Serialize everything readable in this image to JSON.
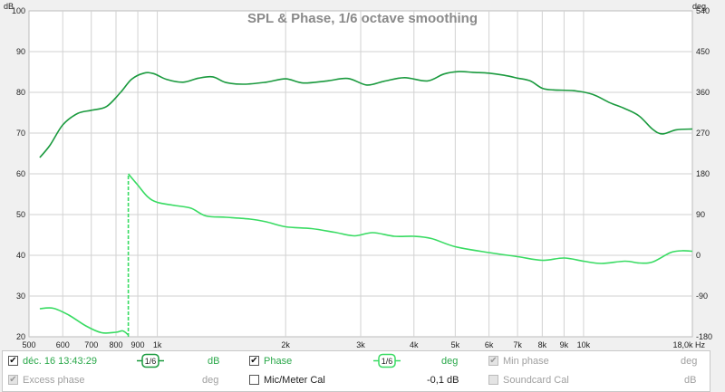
{
  "chart_data": {
    "type": "line",
    "title": "SPL & Phase, 1/6 octave smoothing",
    "left_axis": {
      "unit": "dB",
      "range": [
        20,
        100
      ],
      "ticks": [
        100,
        90,
        80,
        70,
        60,
        50,
        40,
        30,
        20
      ]
    },
    "right_axis": {
      "unit": "deg",
      "range": [
        -180,
        540
      ],
      "ticks": [
        540,
        450,
        360,
        270,
        180,
        90,
        0,
        -90,
        -180
      ]
    },
    "x_axis": {
      "unit": "Hz",
      "scale": "log",
      "range": [
        500,
        18000
      ],
      "ticks": [
        {
          "value": 500,
          "label": "500"
        },
        {
          "value": 600,
          "label": "600"
        },
        {
          "value": 700,
          "label": "700"
        },
        {
          "value": 800,
          "label": "800"
        },
        {
          "value": 900,
          "label": "900"
        },
        {
          "value": 1000,
          "label": "1k"
        },
        {
          "value": 2000,
          "label": "2k"
        },
        {
          "value": 3000,
          "label": "3k"
        },
        {
          "value": 4000,
          "label": "4k"
        },
        {
          "value": 5000,
          "label": "5k"
        },
        {
          "value": 6000,
          "label": "6k"
        },
        {
          "value": 7000,
          "label": "7k"
        },
        {
          "value": 8000,
          "label": "8k"
        },
        {
          "value": 9000,
          "label": "9k"
        },
        {
          "value": 10000,
          "label": "10k"
        },
        {
          "value": 18000,
          "label": "18,0k Hz"
        }
      ]
    },
    "series": [
      {
        "name": "SPL",
        "axis": "left",
        "color": "#1a9a3e",
        "points": [
          [
            530,
            64
          ],
          [
            560,
            67
          ],
          [
            600,
            72
          ],
          [
            650,
            74.8
          ],
          [
            700,
            75.6
          ],
          [
            760,
            76.5
          ],
          [
            820,
            80
          ],
          [
            870,
            83.2
          ],
          [
            930,
            84.7
          ],
          [
            980,
            84.6
          ],
          [
            1050,
            83.2
          ],
          [
            1150,
            82.5
          ],
          [
            1250,
            83.5
          ],
          [
            1350,
            83.8
          ],
          [
            1450,
            82.4
          ],
          [
            1600,
            82
          ],
          [
            1800,
            82.5
          ],
          [
            2000,
            83.3
          ],
          [
            2200,
            82.3
          ],
          [
            2500,
            82.8
          ],
          [
            2800,
            83.4
          ],
          [
            3100,
            81.8
          ],
          [
            3400,
            82.7
          ],
          [
            3800,
            83.6
          ],
          [
            4300,
            82.8
          ],
          [
            4700,
            84.5
          ],
          [
            5100,
            85.1
          ],
          [
            5500,
            84.9
          ],
          [
            6000,
            84.7
          ],
          [
            6500,
            84.2
          ],
          [
            7000,
            83.5
          ],
          [
            7500,
            82.8
          ],
          [
            8000,
            81
          ],
          [
            8500,
            80.6
          ],
          [
            9500,
            80.4
          ],
          [
            10500,
            79.5
          ],
          [
            11500,
            77.5
          ],
          [
            12500,
            76
          ],
          [
            13500,
            74.2
          ],
          [
            14500,
            71
          ],
          [
            15300,
            69.8
          ],
          [
            16500,
            70.8
          ],
          [
            18000,
            71
          ]
        ]
      },
      {
        "name": "Phase",
        "axis": "right",
        "color": "#38db62",
        "segments": [
          [
            [
              530,
              -118
            ],
            [
              570,
              -117
            ],
            [
              620,
              -132
            ],
            [
              680,
              -156
            ],
            [
              740,
              -171
            ],
            [
              800,
              -170
            ],
            [
              830,
              -167
            ],
            [
              855,
              -176
            ]
          ],
          [
            [
              855,
              -180
            ],
            [
              855,
              180
            ]
          ],
          [
            [
              855,
              180
            ],
            [
              900,
              155
            ],
            [
              950,
              129
            ],
            [
              1000,
              117
            ],
            [
              1100,
              110
            ],
            [
              1200,
              104
            ],
            [
              1300,
              87
            ],
            [
              1450,
              84
            ],
            [
              1650,
              80
            ],
            [
              1800,
              74
            ],
            [
              2000,
              63
            ],
            [
              2300,
              59
            ],
            [
              2600,
              51
            ],
            [
              2900,
              43
            ],
            [
              3200,
              50
            ],
            [
              3600,
              42
            ],
            [
              4000,
              42
            ],
            [
              4400,
              37
            ],
            [
              5000,
              19
            ],
            [
              6000,
              6
            ],
            [
              7000,
              -3
            ],
            [
              8000,
              -11
            ],
            [
              9000,
              -6
            ],
            [
              10000,
              -13
            ],
            [
              11000,
              -18
            ],
            [
              12500,
              -13
            ],
            [
              13500,
              -17
            ],
            [
              14500,
              -15
            ],
            [
              16000,
              6
            ],
            [
              17000,
              10
            ],
            [
              18000,
              9
            ]
          ]
        ],
        "dashed_segment_index": 1
      }
    ]
  },
  "legend": {
    "row1": {
      "measurement_label": "déc. 16 13:43:29",
      "smoothing_label": "1/6",
      "db_unit": "dB",
      "phase_label": "Phase",
      "phase_smoothing_label": "1/6",
      "phase_unit": "deg",
      "min_phase_label": "Min phase",
      "min_phase_unit": "deg"
    },
    "row2": {
      "excess_phase_label": "Excess phase",
      "excess_phase_unit": "deg",
      "mic_meter_cal_label": "Mic/Meter Cal",
      "mic_cal_value": "-0,1 dB",
      "soundcard_cal_label": "Soundcard Cal",
      "soundcard_cal_unit": "dB"
    },
    "check_glyph": "✔"
  },
  "colors": {
    "spl": "#1a9a3e",
    "phase": "#38db62",
    "grid": "#d2d2d2",
    "title": "#8a8a8a",
    "legend_green": "#2aa84a",
    "disabled_grey": "#a0a0a0"
  }
}
